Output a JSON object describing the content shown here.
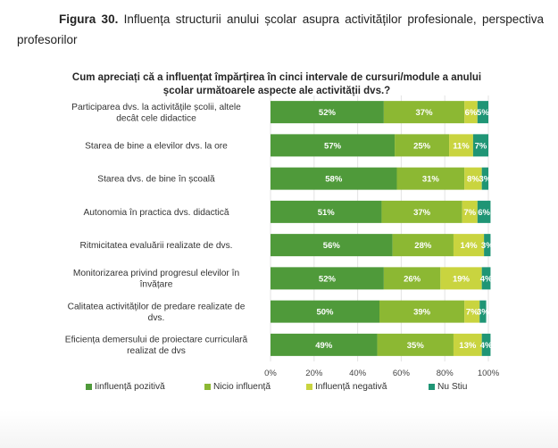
{
  "caption": {
    "figure_number": "Figura 30.",
    "text": " Influența structurii anului școlar asupra activităților profesionale, perspectiva profesorilor"
  },
  "chart_data": {
    "type": "bar",
    "orientation": "horizontal",
    "stacked": "percent",
    "title": "Cum apreciați că a influențat împărțirea în cinci intervale de cursuri/module a anului școlar următoarele aspecte ale activității dvs.?",
    "categories": [
      "Participarea dvs. la activitățile școlii, altele decât cele didactice",
      "Starea de bine a elevilor dvs. la ore",
      "Starea dvs. de bine în școală",
      "Autonomia în practica dvs. didactică",
      "Ritmicitatea evaluării realizate de dvs.",
      "Monitorizarea privind progresul elevilor în învățare",
      "Calitatea activităților de predare realizate de dvs.",
      "Eficiența demersului de proiectare curriculară realizat de dvs"
    ],
    "series": [
      {
        "name": "Iinfluență pozitivă",
        "color": "#4f9a3a",
        "values": [
          52,
          57,
          58,
          51,
          56,
          52,
          50,
          49
        ]
      },
      {
        "name": "Nicio influență",
        "color": "#8cb833",
        "values": [
          37,
          25,
          31,
          37,
          28,
          26,
          39,
          35
        ]
      },
      {
        "name": "Influență negativă",
        "color": "#c9d43f",
        "values": [
          6,
          11,
          8,
          7,
          14,
          19,
          7,
          13
        ]
      },
      {
        "name": "Nu Stiu",
        "color": "#1f9575",
        "values": [
          5,
          7,
          3,
          6,
          3,
          4,
          3,
          4
        ]
      }
    ],
    "xticks": [
      "0%",
      "20%",
      "40%",
      "60%",
      "80%",
      "100%"
    ],
    "xlim": [
      0,
      100
    ],
    "xlabel": "",
    "ylabel": "",
    "grid": true,
    "legend_position": "bottom"
  }
}
